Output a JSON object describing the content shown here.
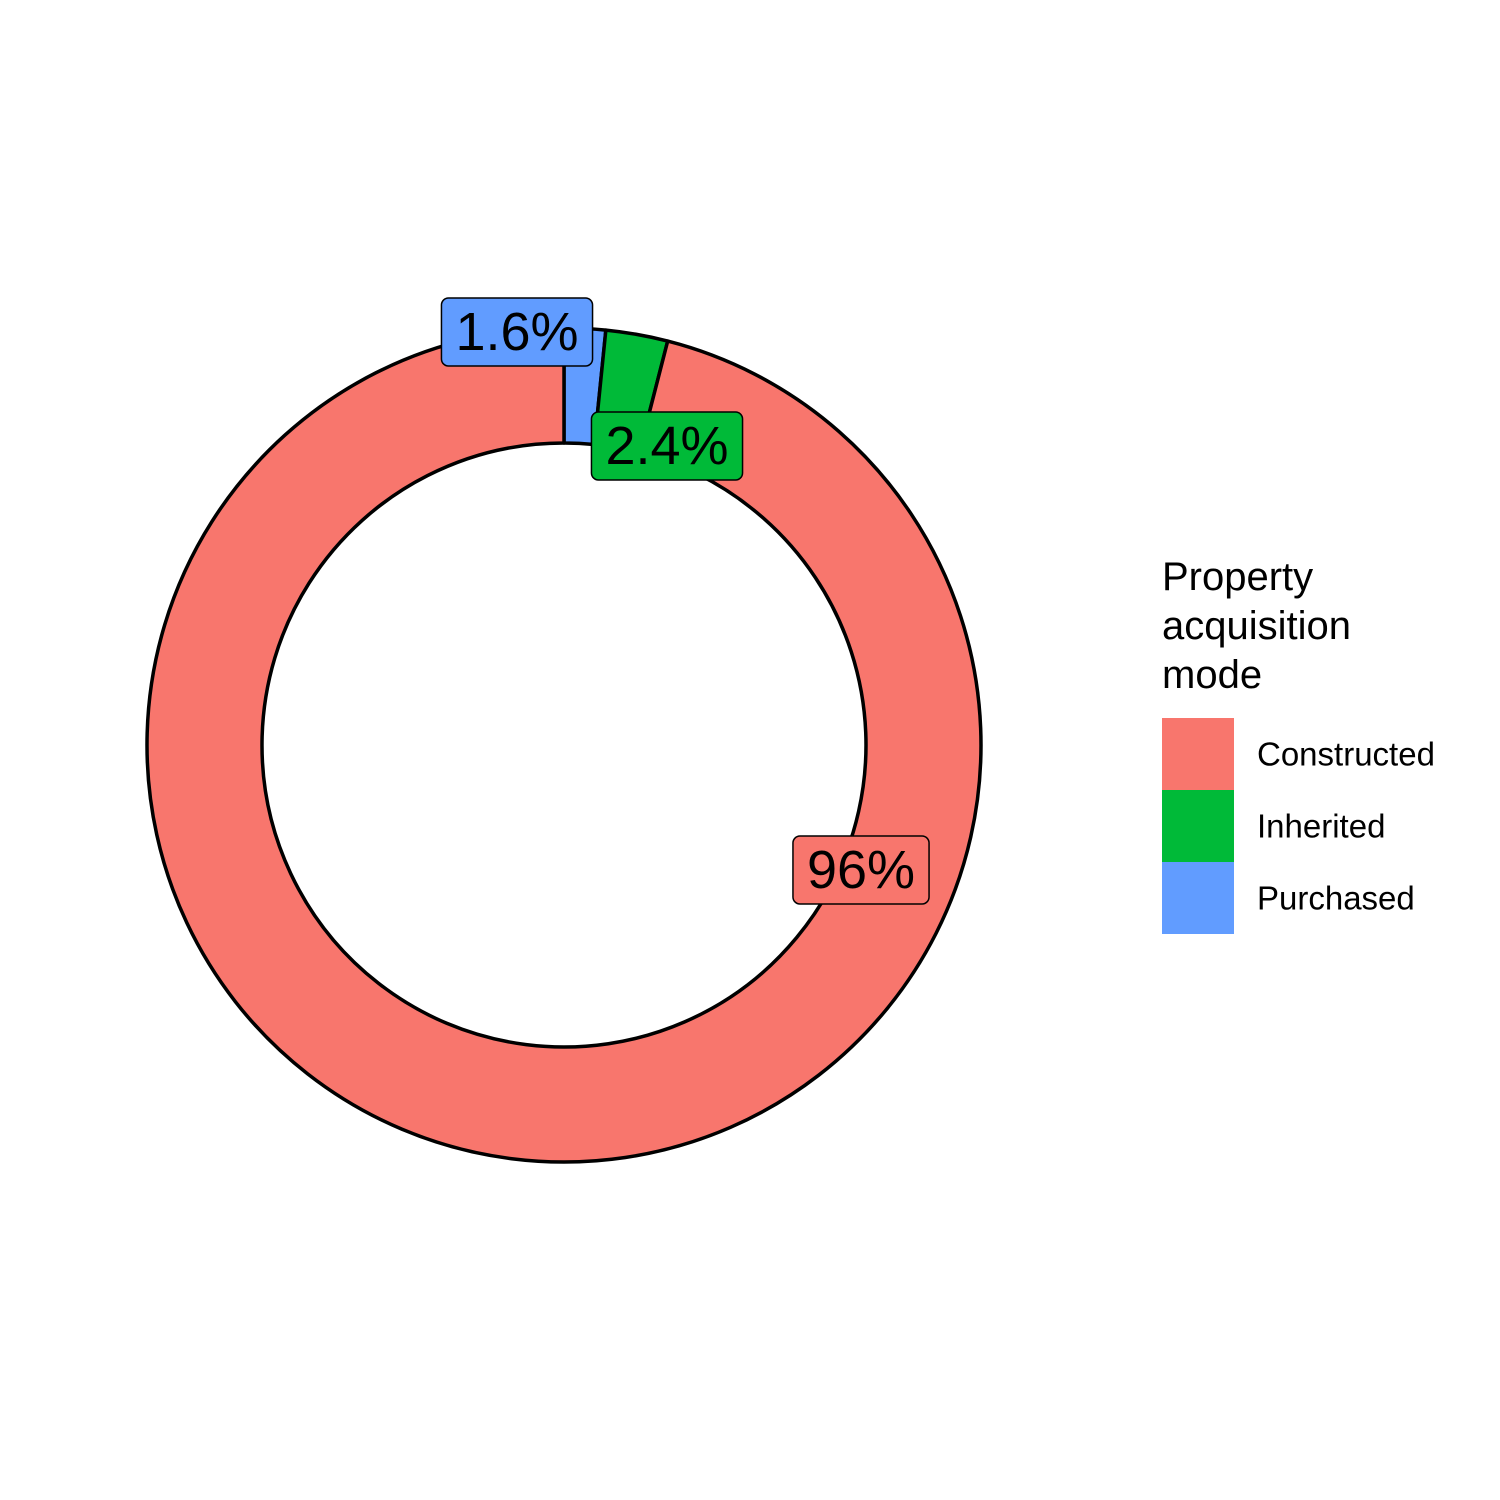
{
  "chart_data": {
    "type": "pie",
    "style": "donut",
    "categories": [
      "Constructed",
      "Inherited",
      "Purchased"
    ],
    "values": [
      96,
      2.4,
      1.6
    ],
    "labels": [
      "96%",
      "2.4%",
      "1.6%"
    ],
    "colors": [
      "#F8766D",
      "#00BA38",
      "#619CFF"
    ],
    "legend": {
      "title": [
        "Property",
        "acquisition",
        "mode"
      ],
      "position": "right"
    },
    "title": "",
    "xlabel": "",
    "ylabel": "",
    "grid": false
  }
}
